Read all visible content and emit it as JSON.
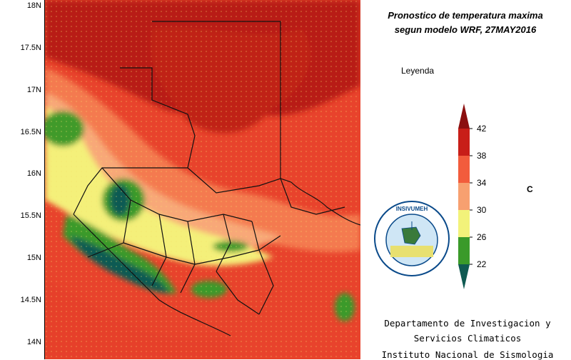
{
  "title_line1": "Pronostico de temperatura maxima",
  "title_line2": "segun modelo WRF, 27MAY2016",
  "legend": {
    "title": "Leyenda",
    "unit": "C",
    "levels": [
      "42",
      "38",
      "34",
      "30",
      "26",
      "22"
    ],
    "colors": [
      "#8b0f0f",
      "#c81e18",
      "#f25c3c",
      "#f7a070",
      "#f2f27a",
      "#3a9a2a",
      "#0f5a52"
    ]
  },
  "lat_labels": [
    "18N",
    "17.5N",
    "17N",
    "16.5N",
    "16N",
    "15.5N",
    "15N",
    "14.5N",
    "14N"
  ],
  "institution": {
    "line1": "Departamento de Investigacion y",
    "line2": "Servicios Climaticos",
    "line3": "Instituto Nacional de Sismologia",
    "seal_text": "INSIVUMEH"
  }
}
